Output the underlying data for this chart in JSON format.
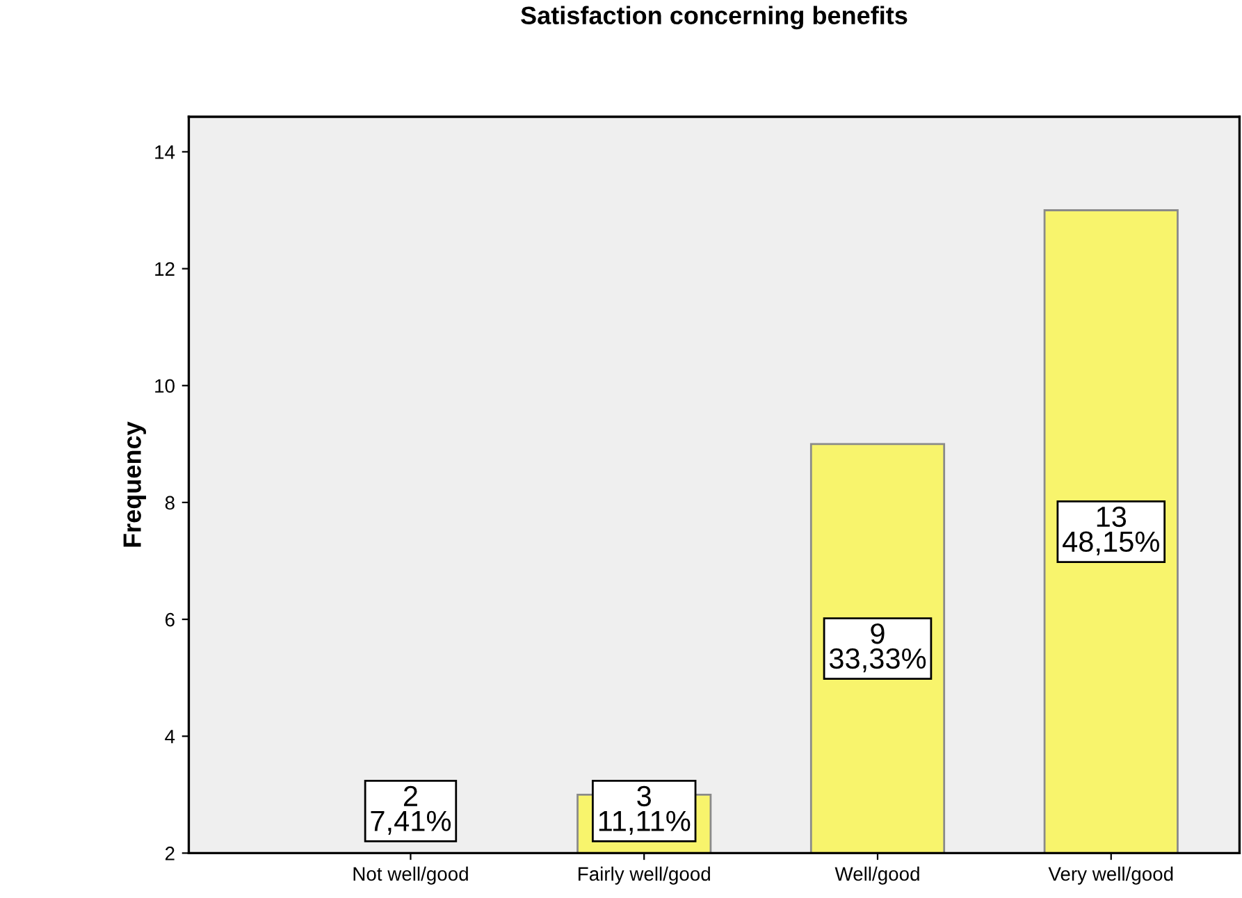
{
  "chart_data": {
    "type": "bar",
    "title": "Satisfaction concerning benefits",
    "ylabel": "Frequency",
    "categories": [
      "Not well/good",
      "Fairly well/good",
      "Well/good",
      "Very well/good"
    ],
    "values": [
      2,
      3,
      9,
      13
    ],
    "color": "#f8f46c",
    "value_labels": [
      "2\n7,41%",
      "3\n11,11%",
      "9\n33,33%",
      "13\n48,15%"
    ],
    "ylim": [
      2,
      14.6
    ],
    "yticks": [
      2,
      4,
      6,
      8,
      10,
      12,
      14
    ],
    "grid": false
  }
}
